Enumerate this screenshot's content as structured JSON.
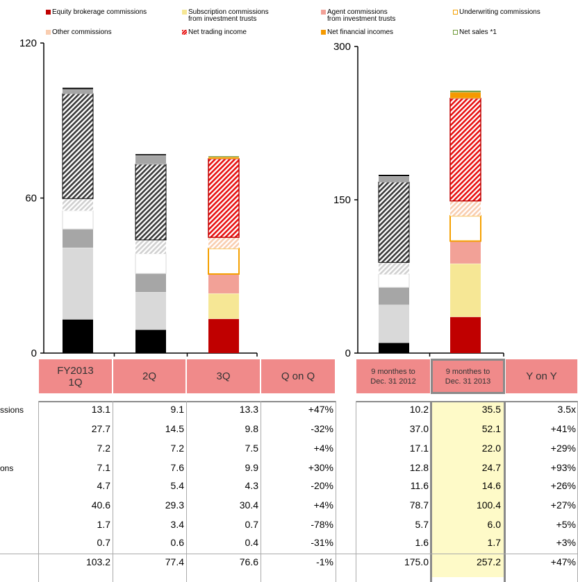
{
  "legend": [
    {
      "key": "equity",
      "label": "Equity brokerage commissions",
      "label2": "",
      "swatch": "solid",
      "color": "#c00000"
    },
    {
      "key": "subscription",
      "label": "Subscription commissions",
      "label2": "from investment trusts",
      "swatch": "solid",
      "color": "#f6e795"
    },
    {
      "key": "agent",
      "label": "Agent commissions",
      "label2": "from investment trusts",
      "swatch": "solid",
      "color": "#f2a197"
    },
    {
      "key": "underwriting",
      "label": "Underwriting commissions",
      "label2": "",
      "swatch": "outline",
      "color": "#f5a000"
    },
    {
      "key": "other",
      "label": "Other commissions",
      "label2": "",
      "swatch": "solid",
      "color": "#f9cdb0"
    },
    {
      "key": "trading",
      "label": "Net trading income",
      "label2": "",
      "swatch": "hatch",
      "color": "#e81010"
    },
    {
      "key": "financial",
      "label": "Net financial incomes",
      "label2": "",
      "swatch": "solid",
      "color": "#f59a00"
    },
    {
      "key": "sales",
      "label": "Net sales *1",
      "label2": "",
      "swatch": "outline",
      "color": "#6f9a3a"
    }
  ],
  "chart_data": [
    {
      "type": "bar",
      "stacked": true,
      "categories": [
        "FY2013 1Q",
        "2Q",
        "3Q"
      ],
      "ylim": [
        0,
        120
      ],
      "yticks": [
        0,
        60,
        120
      ],
      "series": [
        {
          "name": "Equity brokerage commissions",
          "values": [
            13.1,
            9.1,
            13.3
          ]
        },
        {
          "name": "Subscription commissions from investment trusts",
          "values": [
            27.7,
            14.5,
            9.8
          ]
        },
        {
          "name": "Agent commissions from investment trusts",
          "values": [
            7.2,
            7.2,
            7.5
          ]
        },
        {
          "name": "Underwriting commissions",
          "values": [
            7.1,
            7.6,
            9.9
          ]
        },
        {
          "name": "Other commissions",
          "values": [
            4.7,
            5.4,
            4.3
          ]
        },
        {
          "name": "Net trading income",
          "values": [
            40.6,
            29.3,
            30.4
          ]
        },
        {
          "name": "Net financial incomes",
          "values": [
            1.7,
            3.4,
            0.7
          ]
        },
        {
          "name": "Net sales *1",
          "values": [
            0.7,
            0.6,
            0.4
          ]
        }
      ],
      "totals": [
        103.2,
        77.4,
        76.6
      ]
    },
    {
      "type": "bar",
      "stacked": true,
      "categories": [
        "9 monthes to Dec. 31 2012",
        "9 monthes to Dec. 31 2013"
      ],
      "ylim": [
        0,
        300
      ],
      "yticks": [
        0,
        150,
        300
      ],
      "series": [
        {
          "name": "Equity brokerage commissions",
          "values": [
            10.2,
            35.5
          ]
        },
        {
          "name": "Subscription commissions from investment trusts",
          "values": [
            37.0,
            52.1
          ]
        },
        {
          "name": "Agent commissions from investment trusts",
          "values": [
            17.1,
            22.0
          ]
        },
        {
          "name": "Underwriting commissions",
          "values": [
            12.8,
            24.7
          ]
        },
        {
          "name": "Other commissions",
          "values": [
            11.6,
            14.6
          ]
        },
        {
          "name": "Net trading income",
          "values": [
            78.7,
            100.4
          ]
        },
        {
          "name": "Net financial incomes",
          "values": [
            5.7,
            6.0
          ]
        },
        {
          "name": "Net sales *1",
          "values": [
            1.6,
            1.7
          ]
        }
      ],
      "totals": [
        175.0,
        257.2
      ]
    }
  ],
  "table": {
    "headers_q": [
      {
        "line1": "FY2013",
        "line2": "1Q"
      },
      {
        "line1": "2Q",
        "line2": ""
      },
      {
        "line1": "3Q",
        "line2": ""
      },
      {
        "line1": "Q on Q",
        "line2": ""
      }
    ],
    "headers_y": [
      {
        "line1": "9 monthes to",
        "line2": "Dec. 31 2012"
      },
      {
        "line1": "9 monthes to",
        "line2": "Dec. 31 2013"
      },
      {
        "line1": "Y on Y",
        "line2": ""
      }
    ],
    "row_labels": [
      "ssions",
      "",
      "",
      "ons",
      "",
      "",
      "",
      "",
      ""
    ],
    "rows": [
      {
        "q": [
          "13.1",
          "9.1",
          "13.3",
          "+47%"
        ],
        "y": [
          "10.2",
          "35.5",
          "3.5x"
        ]
      },
      {
        "q": [
          "27.7",
          "14.5",
          "9.8",
          "-32%"
        ],
        "y": [
          "37.0",
          "52.1",
          "+41%"
        ]
      },
      {
        "q": [
          "7.2",
          "7.2",
          "7.5",
          "+4%"
        ],
        "y": [
          "17.1",
          "22.0",
          "+29%"
        ]
      },
      {
        "q": [
          "7.1",
          "7.6",
          "9.9",
          "+30%"
        ],
        "y": [
          "12.8",
          "24.7",
          "+93%"
        ]
      },
      {
        "q": [
          "4.7",
          "5.4",
          "4.3",
          "-20%"
        ],
        "y": [
          "11.6",
          "14.6",
          "+26%"
        ]
      },
      {
        "q": [
          "40.6",
          "29.3",
          "30.4",
          "+4%"
        ],
        "y": [
          "78.7",
          "100.4",
          "+27%"
        ]
      },
      {
        "q": [
          "1.7",
          "3.4",
          "0.7",
          "-78%"
        ],
        "y": [
          "5.7",
          "6.0",
          "+5%"
        ]
      },
      {
        "q": [
          "0.7",
          "0.6",
          "0.4",
          "-31%"
        ],
        "y": [
          "1.6",
          "1.7",
          "+3%"
        ]
      },
      {
        "q": [
          "103.2",
          "77.4",
          "76.6",
          "-1%"
        ],
        "y": [
          "175.0",
          "257.2",
          "+47%"
        ]
      }
    ]
  },
  "colors": {
    "header_bg": "#f08a8a",
    "highlight_col": "#fefac8",
    "grey_equity": "#000000",
    "grey_subscription": "#d9d9d9",
    "grey_agent": "#a6a6a6",
    "grey_other": "#d9d9d9",
    "grey_trading": "#404040",
    "grey_financial": "#a6a6a6",
    "grey_sales": "#000000"
  }
}
